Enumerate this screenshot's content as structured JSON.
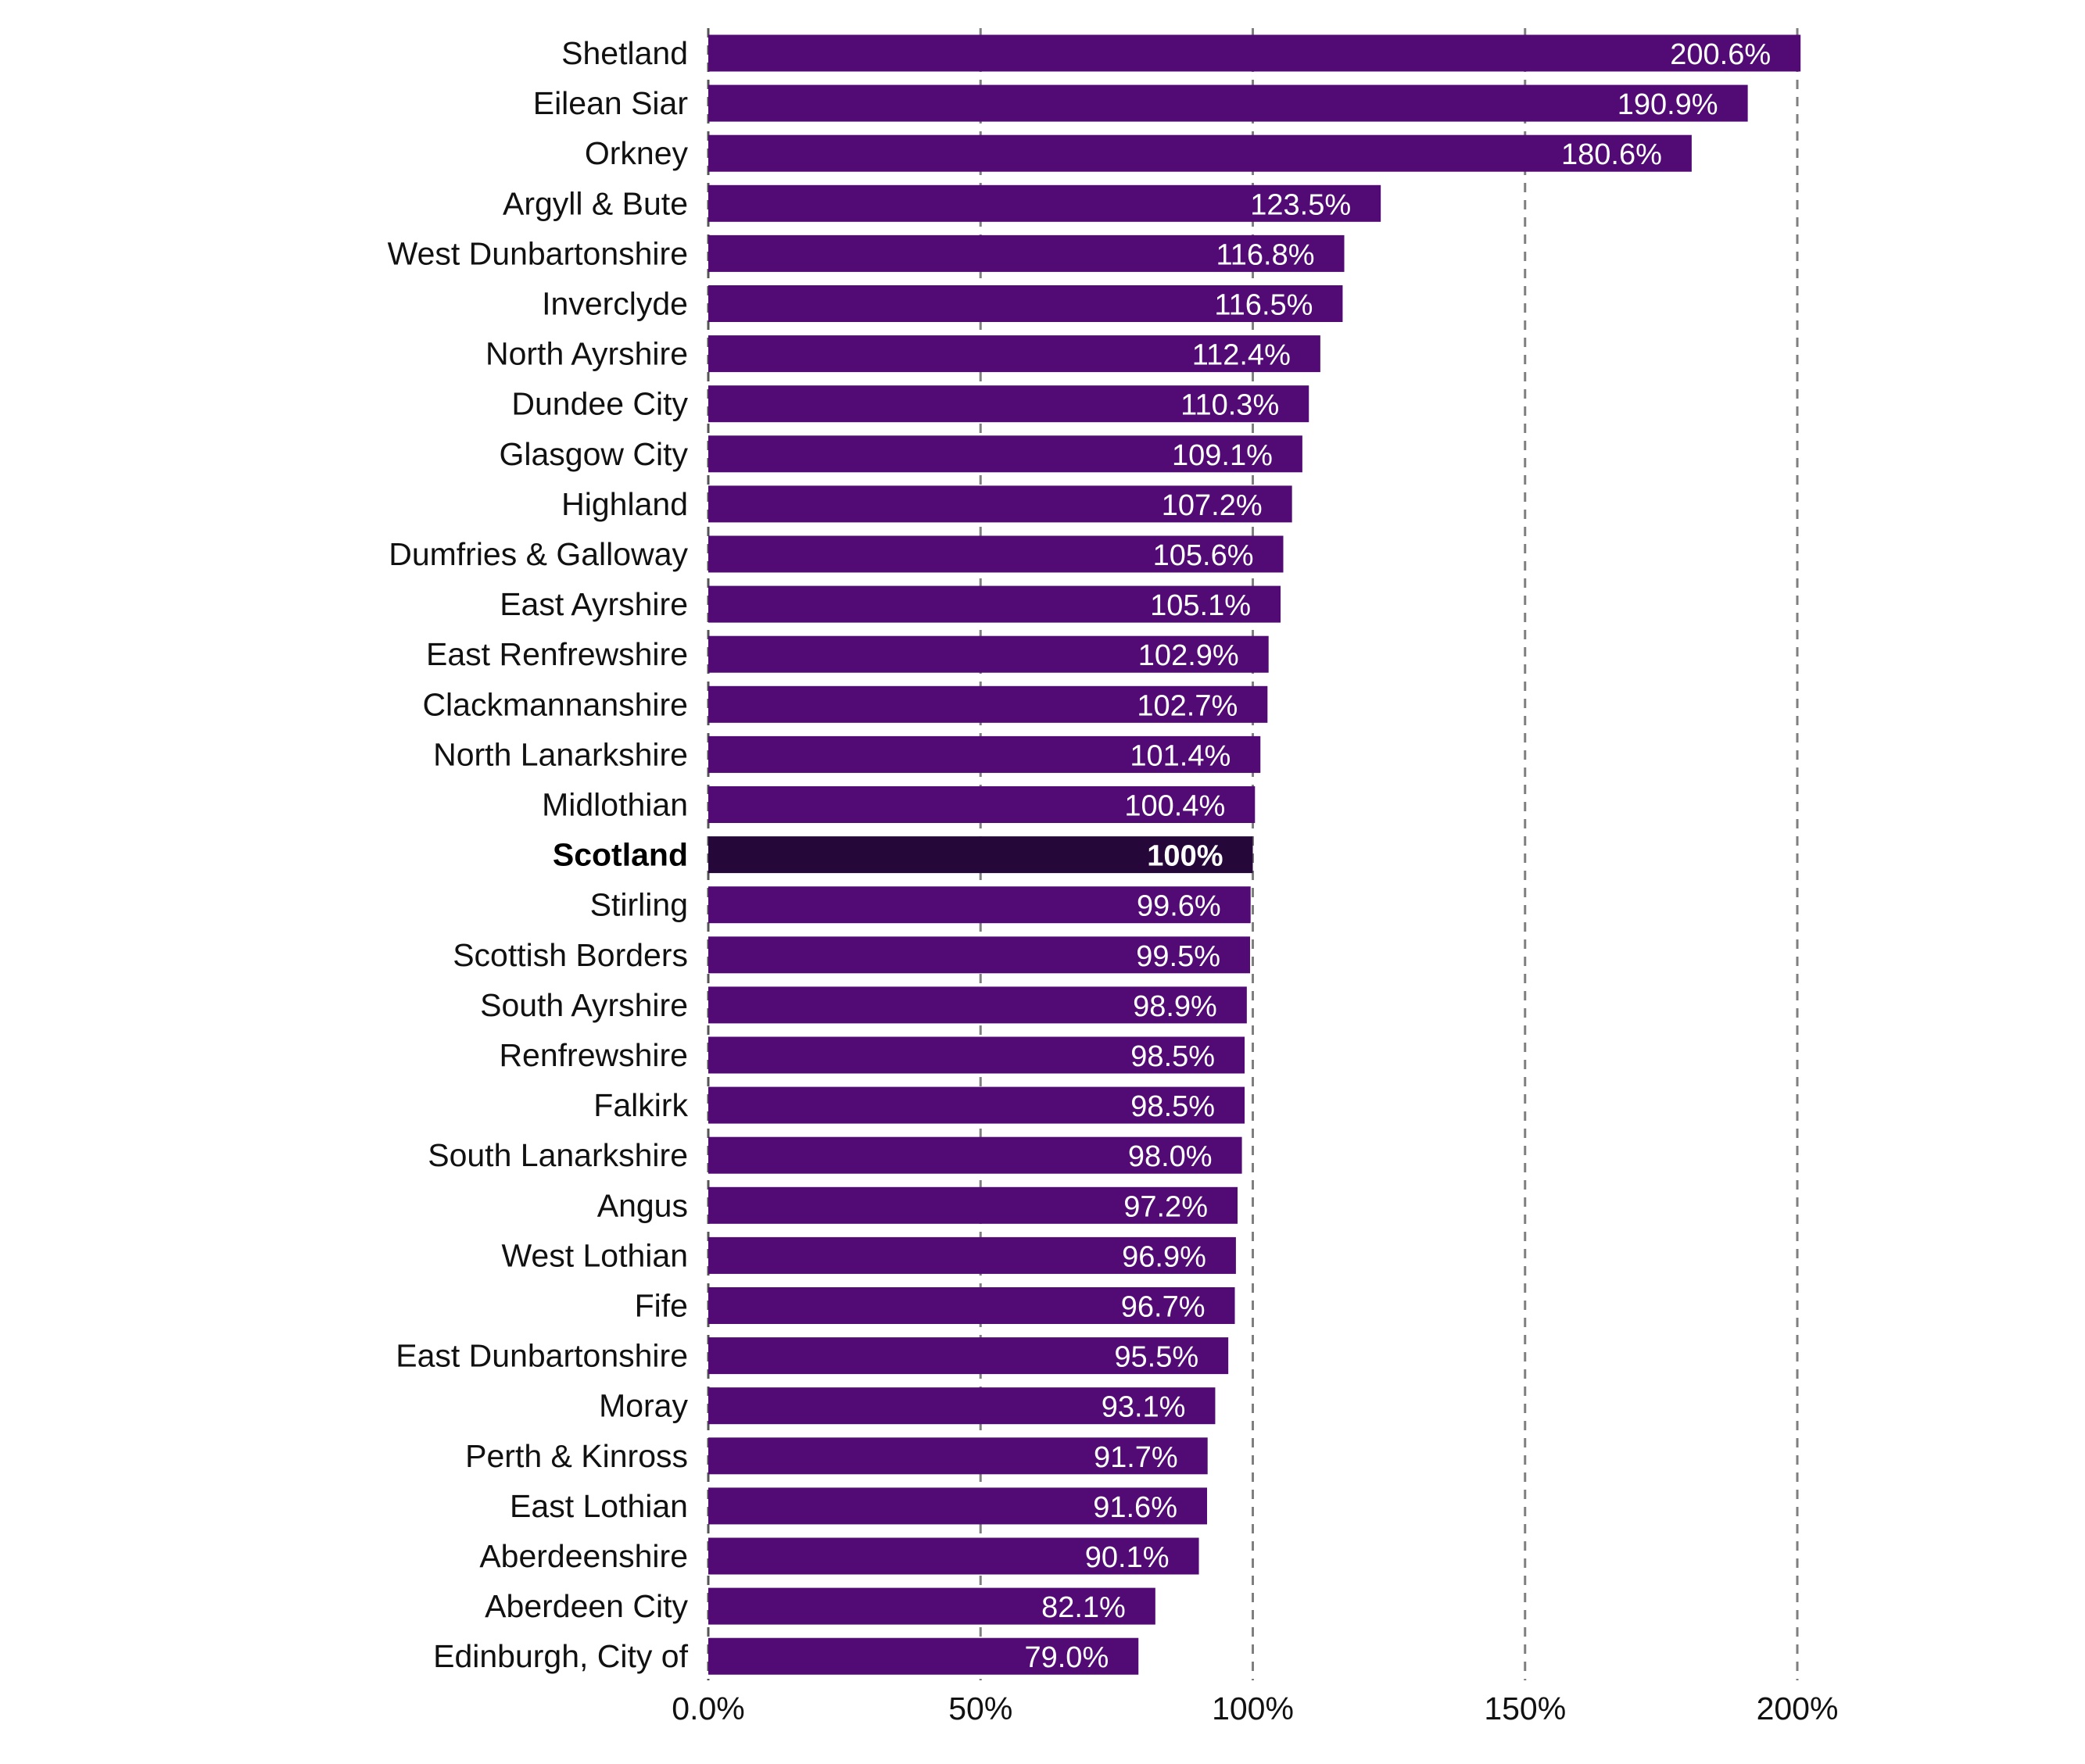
{
  "chart_data": {
    "type": "bar",
    "orientation": "horizontal",
    "categories": [
      "Shetland",
      "Eilean Siar",
      "Orkney",
      "Argyll & Bute",
      "West Dunbartonshire",
      "Inverclyde",
      "North Ayrshire",
      "Dundee City",
      "Glasgow City",
      "Highland",
      "Dumfries & Galloway",
      "East Ayrshire",
      "East Renfrewshire",
      "Clackmannanshire",
      "North Lanarkshire",
      "Midlothian",
      "Scotland",
      "Stirling",
      "Scottish Borders",
      "South Ayrshire",
      "Renfrewshire",
      "Falkirk",
      "South Lanarkshire",
      "Angus",
      "West Lothian",
      "Fife",
      "East Dunbartonshire",
      "Moray",
      "Perth & Kinross",
      "East Lothian",
      "Aberdeenshire",
      "Aberdeen City",
      "Edinburgh, City of"
    ],
    "values": [
      200.6,
      190.9,
      180.6,
      123.5,
      116.8,
      116.5,
      112.4,
      110.3,
      109.1,
      107.2,
      105.6,
      105.1,
      102.9,
      102.7,
      101.4,
      100.4,
      100,
      99.6,
      99.5,
      98.9,
      98.5,
      98.5,
      98.0,
      97.2,
      96.9,
      96.7,
      95.5,
      93.1,
      91.7,
      91.6,
      90.1,
      82.1,
      79.0
    ],
    "value_labels": [
      "200.6%",
      "190.9%",
      "180.6%",
      "123.5%",
      "116.8%",
      "116.5%",
      "112.4%",
      "110.3%",
      "109.1%",
      "107.2%",
      "105.6%",
      "105.1%",
      "102.9%",
      "102.7%",
      "101.4%",
      "100.4%",
      "100%",
      "99.6%",
      "99.5%",
      "98.9%",
      "98.5%",
      "98.5%",
      "98.0%",
      "97.2%",
      "96.9%",
      "96.7%",
      "95.5%",
      "93.1%",
      "91.7%",
      "91.6%",
      "90.1%",
      "82.1%",
      "79.0%"
    ],
    "highlight_category": "Scotland",
    "xlim": [
      0,
      200
    ],
    "xticks": [
      0,
      50,
      100,
      150,
      200
    ],
    "xtick_labels": [
      "0.0%",
      "50%",
      "100%",
      "150%",
      "200%"
    ],
    "grid": true,
    "title": "",
    "xlabel": "",
    "ylabel": "",
    "colors": {
      "bar": "#520a75",
      "highlight_bar": "#25073a",
      "value_text": "#ffffff",
      "grid": "#7f7f7f"
    }
  }
}
